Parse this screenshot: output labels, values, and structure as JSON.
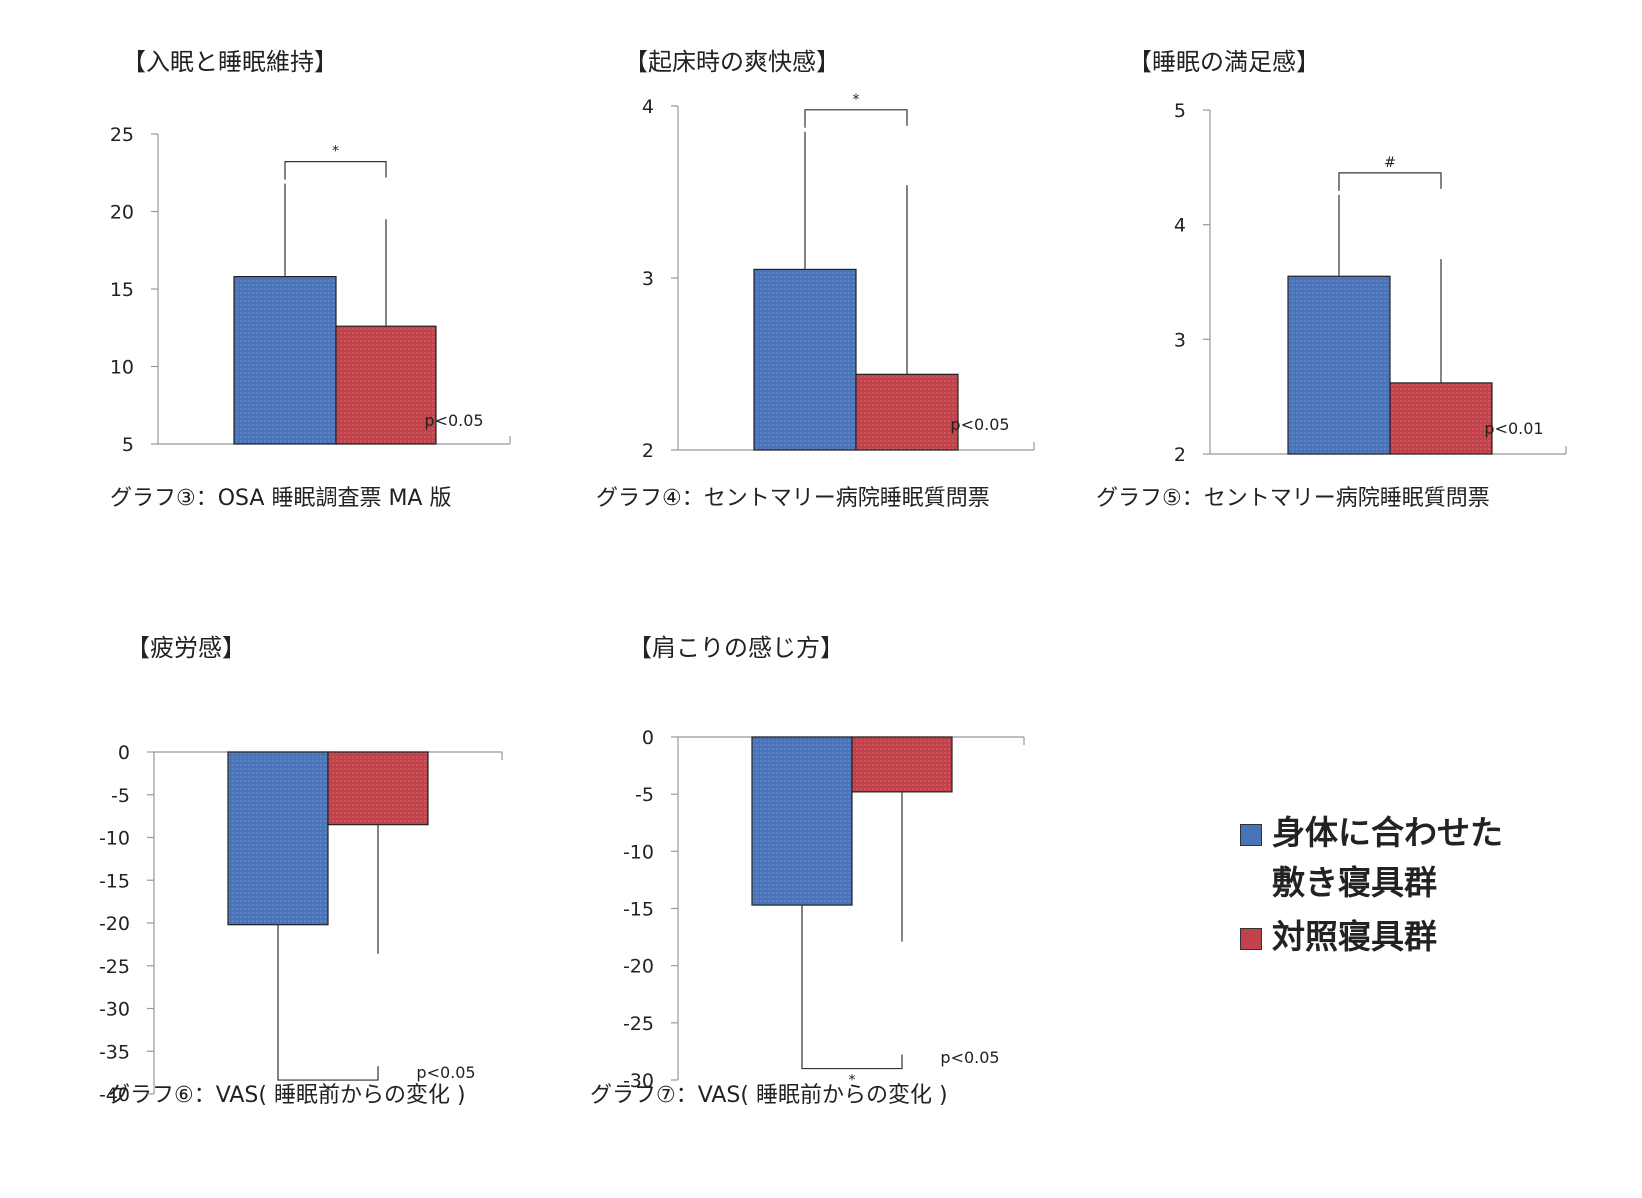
{
  "colors": {
    "group_a": "#4a73b8",
    "group_b": "#c0434b",
    "axis": "#999999",
    "error": "#333333"
  },
  "legend": {
    "group_a_line1": "身体に合わせた",
    "group_a_line2": "敷き寝具群",
    "group_b": "対照寝具群"
  },
  "chart_data": [
    {
      "type": "bar",
      "title": "【入眠と睡眠維持】",
      "caption": "グラフ③：OSA 睡眠調査票 MA 版",
      "categories": [
        "身体に合わせた敷き寝具群",
        "対照寝具群"
      ],
      "values": [
        15.8,
        12.6
      ],
      "error_bars": [
        6.0,
        6.9
      ],
      "ylim": [
        5,
        25
      ],
      "yticks": [
        "5",
        "10",
        "15",
        "20",
        "25"
      ],
      "significance": "*",
      "p_value": "p<0.05"
    },
    {
      "type": "bar",
      "title": "【起床時の爽快感】",
      "caption": "グラフ④：セントマリー病院睡眠質問票",
      "categories": [
        "身体に合わせた敷き寝具群",
        "対照寝具群"
      ],
      "values": [
        3.05,
        2.44
      ],
      "error_bars": [
        0.8,
        1.1
      ],
      "ylim": [
        2,
        4
      ],
      "yticks": [
        "2",
        "3",
        "4"
      ],
      "significance": "*",
      "p_value": "p<0.05"
    },
    {
      "type": "bar",
      "title": "【睡眠の満足感】",
      "caption": "グラフ⑤：セントマリー病院睡眠質問票",
      "categories": [
        "身体に合わせた敷き寝具群",
        "対照寝具群"
      ],
      "values": [
        3.55,
        2.62
      ],
      "error_bars": [
        0.71,
        1.08
      ],
      "ylim": [
        2,
        5
      ],
      "yticks": [
        "2",
        "3",
        "4",
        "5"
      ],
      "significance": "#",
      "p_value": "p<0.01"
    },
    {
      "type": "bar",
      "title": "【疲労感】",
      "caption": "グラフ⑥：VAS( 睡眠前からの変化 )",
      "categories": [
        "身体に合わせた敷き寝具群",
        "対照寝具群"
      ],
      "values": [
        -20.2,
        -8.5
      ],
      "error_bars": [
        16.3,
        15.1
      ],
      "ylim": [
        -40,
        0
      ],
      "yticks": [
        "-40",
        "-35",
        "-30",
        "-25",
        "-20",
        "-15",
        "-10",
        "-5",
        "0"
      ],
      "significance": "*",
      "p_value": "p<0.05"
    },
    {
      "type": "bar",
      "title": "【肩こりの感じ方】",
      "caption": "グラフ⑦：VAS( 睡眠前からの変化 )",
      "categories": [
        "身体に合わせた敷き寝具群",
        "対照寝具群"
      ],
      "values": [
        -14.7,
        -4.8
      ],
      "error_bars": [
        12.9,
        13.1
      ],
      "ylim": [
        -30,
        0
      ],
      "yticks": [
        "-30",
        "-25",
        "-20",
        "-15",
        "-10",
        "-5",
        "0"
      ],
      "significance": "*",
      "p_value": "p<0.05"
    }
  ]
}
